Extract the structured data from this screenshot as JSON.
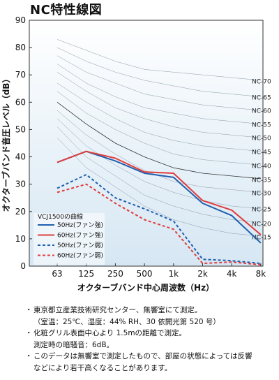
{
  "chart_data": {
    "type": "line",
    "title": "NC特性線図",
    "xlabel": "オクターブバンド中心周波数（Hz）",
    "ylabel": "オクターブバンド音圧レベル（dB）",
    "categories": [
      "63",
      "125",
      "250",
      "500",
      "1k",
      "2k",
      "4k",
      "8k"
    ],
    "ylim": [
      0,
      90
    ],
    "yticks": [
      0,
      10,
      20,
      30,
      40,
      50,
      60,
      70,
      80,
      90
    ],
    "grid": false,
    "legend_title": "VCJ1500の曲線",
    "legend_position": "lower-left",
    "series": [
      {
        "name": "50Hz(ファン強)",
        "color": "#1f5fad",
        "dash": "solid",
        "values": [
          38,
          42,
          38.5,
          34,
          32.5,
          23,
          18.5,
          8.5
        ]
      },
      {
        "name": "60Hz(ファン強)",
        "color": "#e03c3c",
        "dash": "solid",
        "values": [
          38,
          42,
          39.5,
          34.5,
          34,
          24,
          20.5,
          11.5
        ]
      },
      {
        "name": "50Hz(ファン弱)",
        "color": "#1f5fad",
        "dash": "dashed",
        "values": [
          28.5,
          33.5,
          25,
          21,
          16.5,
          2.5,
          2,
          1
        ]
      },
      {
        "name": "60Hz(ファン弱)",
        "color": "#e03c3c",
        "dash": "dashed",
        "values": [
          27,
          30,
          23,
          17,
          13.5,
          1,
          1.5,
          0.5
        ]
      }
    ],
    "nc_curves": [
      {
        "label": "NC-70",
        "values": [
          83,
          79,
          75,
          72,
          71,
          70,
          69,
          68
        ]
      },
      {
        "label": "NC-65",
        "values": [
          80,
          75,
          71,
          68,
          66,
          64,
          63,
          62
        ]
      },
      {
        "label": "NC-60",
        "values": [
          77,
          71,
          67,
          63,
          61,
          59,
          58,
          57
        ]
      },
      {
        "label": "NC-55",
        "values": [
          74,
          67,
          62,
          58,
          56,
          54,
          53,
          52
        ]
      },
      {
        "label": "NC-50",
        "values": [
          71,
          64,
          58,
          54,
          51,
          49,
          48,
          47
        ]
      },
      {
        "label": "NC-45",
        "values": [
          67,
          60,
          54,
          49,
          46,
          44,
          43,
          42
        ]
      },
      {
        "label": "NC-40",
        "values": [
          64,
          56,
          50,
          45,
          41,
          39,
          38,
          37
        ]
      },
      {
        "label": "NC-35",
        "values": [
          60,
          52,
          45,
          40,
          36,
          34,
          33,
          32
        ],
        "emphasis": true
      },
      {
        "label": "NC-30",
        "values": [
          57,
          48,
          41,
          35,
          31,
          29,
          28,
          27
        ]
      },
      {
        "label": "NC-25",
        "values": [
          54,
          44,
          37,
          31,
          27,
          24,
          22,
          21
        ]
      },
      {
        "label": "NC-20",
        "values": [
          51,
          40,
          33,
          26,
          22,
          19,
          17,
          16
        ]
      },
      {
        "label": "NC-15",
        "values": [
          47,
          36,
          29,
          22,
          17,
          14,
          12,
          11
        ]
      }
    ]
  },
  "notes": [
    {
      "bullet": "・",
      "lines": [
        "東京都立産業技術研究センター、無響室にて測定。",
        "（室温：25℃、湿度：44% RH、30 依開光第 520 号）"
      ]
    },
    {
      "bullet": "・",
      "lines": [
        "化粧グリル表面中心より 1.5mの距離で測定。",
        "測定時の暗騒音：6dB。"
      ]
    },
    {
      "bullet": "・",
      "lines": [
        "このデータは無響室で測定したもので、部屋の状態によっては反響",
        "などにより若干高くなることがあります。"
      ]
    }
  ]
}
